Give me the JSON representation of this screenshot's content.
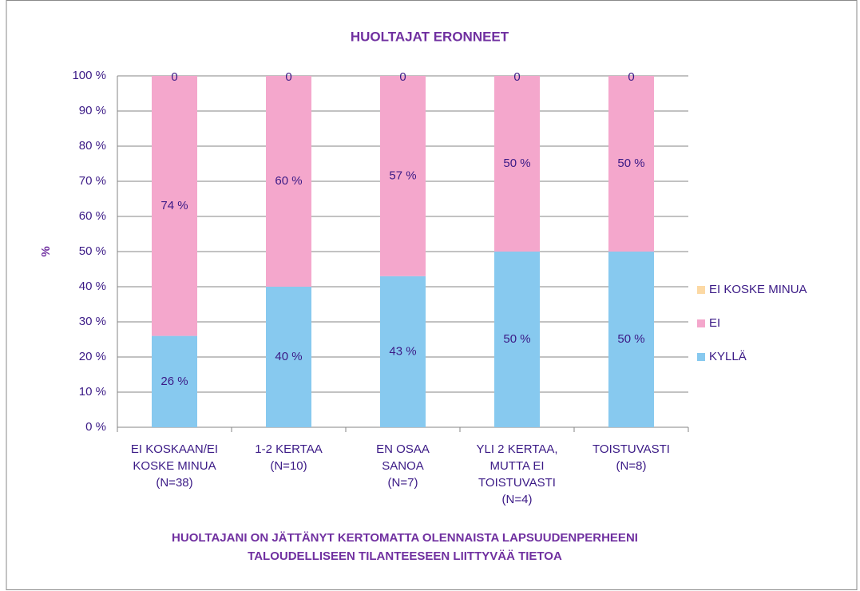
{
  "chart_data": {
    "type": "stacked_bar_100",
    "title": "HUOLTAJAT ERONNEET",
    "y_label": "%",
    "x_label": [
      "HUOLTAJANI ON JÄTTÄNYT KERTOMATTA OLENNAISTA LAPSUUDENPERHEENI",
      "TALOUDELLISEEN TILANTEESEEN LIITTYVÄÄ TIETOA"
    ],
    "categories": [
      [
        "EI KOSKAAN/EI",
        "KOSKE MINUA",
        "(N=38)"
      ],
      [
        "1-2 KERTAA",
        "(N=10)"
      ],
      [
        "EN OSAA",
        "SANOA",
        "(N=7)"
      ],
      [
        "YLI 2 KERTAA,",
        "MUTTA EI",
        "TOISTUVASTI",
        "(N=4)"
      ],
      [
        "TOISTUVASTI",
        "(N=8)"
      ]
    ],
    "series": [
      {
        "name": "KYLLÄ",
        "color": "#87c9ef",
        "values": [
          26,
          40,
          43,
          50,
          50
        ],
        "value_labels": [
          "26 %",
          "40 %",
          "43 %",
          "50 %",
          "50 %"
        ]
      },
      {
        "name": "EI",
        "color": "#f4a7cc",
        "values": [
          74,
          60,
          57,
          50,
          50
        ],
        "value_labels": [
          "74 %",
          "60 %",
          "57 %",
          "50 %",
          "50 %"
        ]
      },
      {
        "name": "EI KOSKE MINUA",
        "color": "#fcd9a4",
        "values": [
          0,
          0,
          0,
          0,
          0
        ]
      }
    ],
    "ylim": [
      0,
      100
    ],
    "yticks": [
      {
        "value": 0,
        "label": "0 %"
      },
      {
        "value": 10,
        "label": "10 %"
      },
      {
        "value": 20,
        "label": "20 %"
      },
      {
        "value": 30,
        "label": "30 %"
      },
      {
        "value": 40,
        "label": "40 %"
      },
      {
        "value": 50,
        "label": "50 %"
      },
      {
        "value": 60,
        "label": "60 %"
      },
      {
        "value": 70,
        "label": "70 %"
      },
      {
        "value": 80,
        "label": "80 %"
      },
      {
        "value": 90,
        "label": "90 %"
      },
      {
        "value": 100,
        "label": "100 %"
      }
    ],
    "grid": true,
    "legend": "right"
  }
}
